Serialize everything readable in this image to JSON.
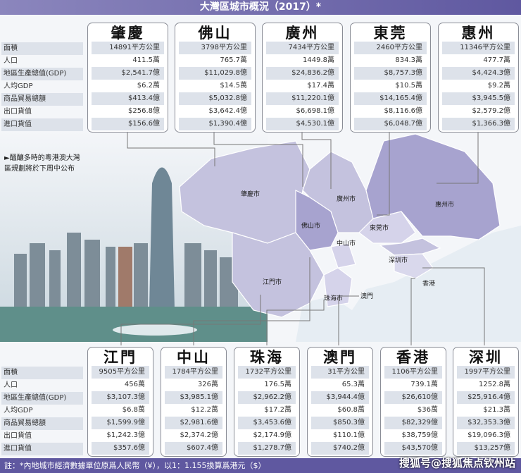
{
  "title": "大灣區城市概況（2017）*",
  "row_labels": [
    "面積",
    "人口",
    "地區生產總值(GDP)",
    "人均GDP",
    "商品貿易總額",
    "出口貨值",
    "進口貨值"
  ],
  "top_cities": [
    {
      "name": "肇慶",
      "values": [
        "14891平方公里",
        "411.5萬",
        "$2,541.7億",
        "$6.2萬",
        "$413.4億",
        "$256.8億",
        "$156.6億"
      ]
    },
    {
      "name": "佛山",
      "values": [
        "3798平方公里",
        "765.7萬",
        "$11,029.8億",
        "$14.5萬",
        "$5,032.8億",
        "$3,642.4億",
        "$1,390.4億"
      ]
    },
    {
      "name": "廣州",
      "values": [
        "7434平方公里",
        "1449.8萬",
        "$24,836.2億",
        "$17.4萬",
        "$11,220.1億",
        "$6,698.1億",
        "$4,530.1億"
      ]
    },
    {
      "name": "東莞",
      "values": [
        "2460平方公里",
        "834.3萬",
        "$8,757.3億",
        "$10.5萬",
        "$14,165.4億",
        "$8,116.6億",
        "$6,048.7億"
      ]
    },
    {
      "name": "惠州",
      "values": [
        "11346平方公里",
        "477.7萬",
        "$4,424.3億",
        "$9.2萬",
        "$3,945.5億",
        "$2,579.2億",
        "$1,366.3億"
      ]
    }
  ],
  "bottom_cities": [
    {
      "name": "江門",
      "values": [
        "9505平方公里",
        "456萬",
        "$3,107.3億",
        "$6.8萬",
        "$1,599.9億",
        "$1,242.3億",
        "$357.6億"
      ]
    },
    {
      "name": "中山",
      "values": [
        "1784平方公里",
        "326萬",
        "$3,985.1億",
        "$12.2萬",
        "$2,981.6億",
        "$2,374.2億",
        "$607.4億"
      ]
    },
    {
      "name": "珠海",
      "values": [
        "1732平方公里",
        "176.5萬",
        "$2,962.2億",
        "$17.2萬",
        "$3,453.6億",
        "$2,174.9億",
        "$1,278.7億"
      ]
    },
    {
      "name": "澳門",
      "values": [
        "31平方公里",
        "65.3萬",
        "$3,944.4億",
        "$60.8萬",
        "$850.3億",
        "$110.1億",
        "$740.2億"
      ]
    },
    {
      "name": "香港",
      "values": [
        "1106平方公里",
        "739.1萬",
        "$26,610億",
        "$36萬",
        "$82,329億",
        "$38,759億",
        "$43,570億"
      ]
    },
    {
      "name": "深圳",
      "values": [
        "1997平方公里",
        "1252.8萬",
        "$25,916.4億",
        "$21.3萬",
        "$32,353.3億",
        "$19,096.3億",
        "$13,257億"
      ]
    }
  ],
  "map_labels": {
    "zhaoqing": "肇慶市",
    "guangzhou": "廣州市",
    "huizhou": "惠州市",
    "foshan": "佛山市",
    "dongguan": "東莞市",
    "zhongshan": "中山市",
    "shenzhen": "深圳市",
    "jiangmen": "江門市",
    "zhuhai": "珠海市",
    "macau": "澳門",
    "hongkong": "香港"
  },
  "note": [
    "►醞釀多時的粵港澳大灣",
    "區規劃將於下周中公布"
  ],
  "footnote": "註：*內地城市經濟數據單位原爲人民幣（¥），以1：1.155換算爲港元（$）",
  "watermark": "搜狐号@搜狐焦点钦州站",
  "colors": {
    "header": "#5f58a0",
    "region": "#c4c2de",
    "region_dark": "#a7a3cf",
    "band": "#dde2ea"
  }
}
